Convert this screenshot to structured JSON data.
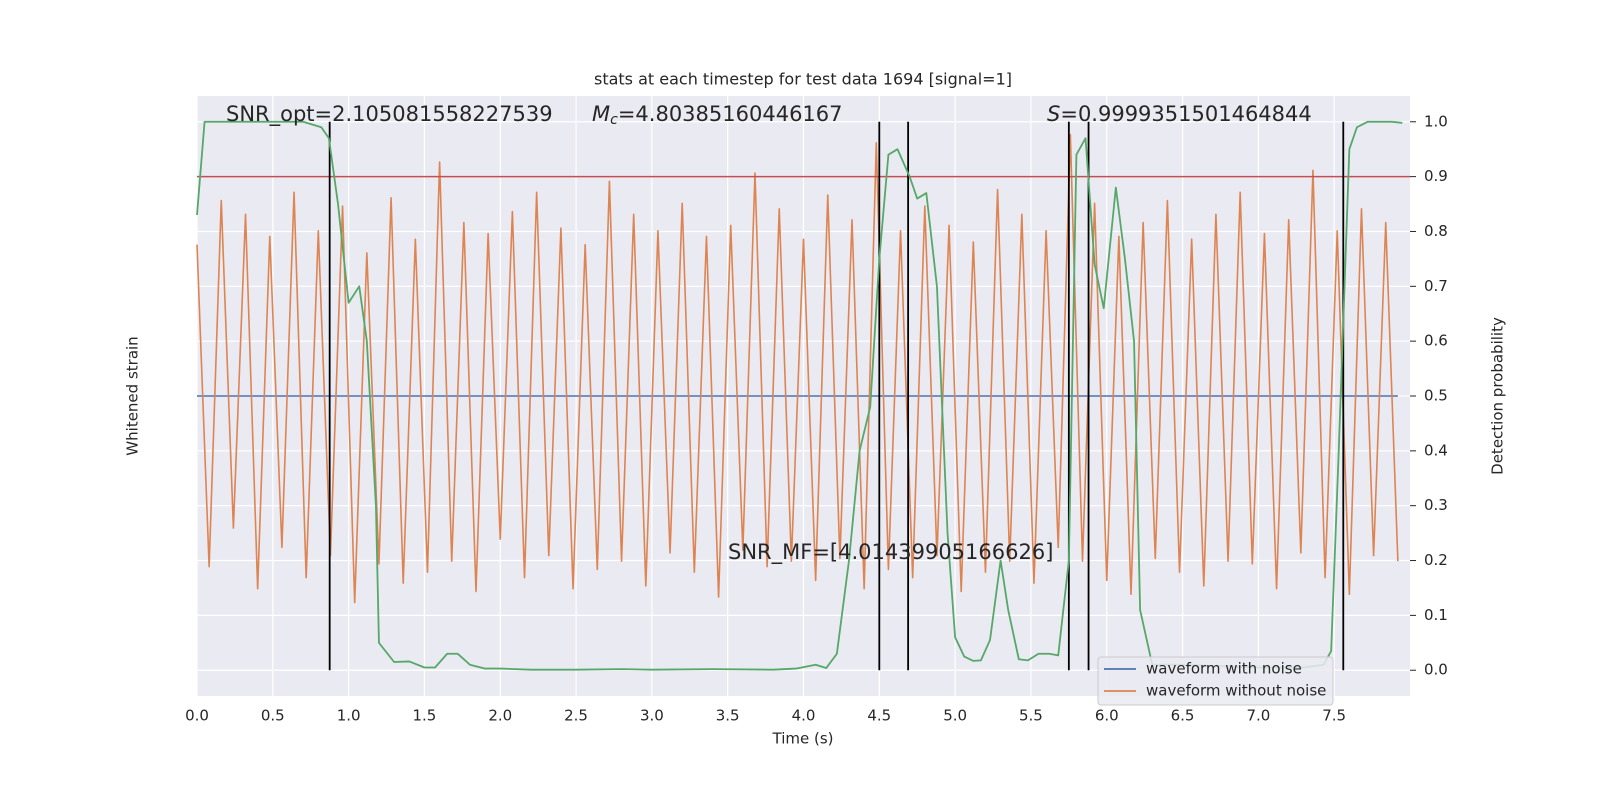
{
  "chart_data": {
    "type": "line",
    "title": "stats at each timestep for test data 1694 [signal=1]",
    "xlabel": "Time (s)",
    "ylabel": "Whitened strain",
    "y2label": "Detection probability",
    "annotations": {
      "snr_opt": "SNR_opt=2.105081558227539",
      "mc_symbol": "M",
      "mc_subscript": "c",
      "mc_value": "=4.80385160446167",
      "s_symbol": "S",
      "s_value": "=0.9999351501464844",
      "snr_mf": "SNR_MF=[4.01439905166626]"
    },
    "xlim": [
      0,
      8.0
    ],
    "xticks": [
      {
        "value": 0,
        "label": "0.0"
      },
      0.5,
      {
        "value": 1,
        "label": "1.0"
      },
      1.5,
      {
        "value": 2,
        "label": "2.0"
      },
      2.5,
      {
        "value": 3,
        "label": "3.0"
      },
      3.5,
      {
        "value": 4,
        "label": "4.0"
      },
      4.5,
      {
        "value": 5,
        "label": "5.0"
      },
      5.5,
      {
        "value": 6,
        "label": "6.0"
      },
      6.5,
      {
        "value": 7,
        "label": "7.0"
      },
      7.5
    ],
    "ylim": [
      -1.09,
      1.09
    ],
    "y2lim": [
      -0.047,
      1.047
    ],
    "y2ticks": [
      {
        "value": 0,
        "label": "0.0"
      },
      0.1,
      0.2,
      0.3,
      0.4,
      0.5,
      0.6,
      0.7,
      0.8,
      0.9,
      {
        "value": 1,
        "label": "1.0"
      }
    ],
    "grid": true,
    "legend": "lower right",
    "series": [
      {
        "name": "waveform with noise",
        "color": "#4c72b0",
        "x": [
          0,
          7.92
        ],
        "values": [
          0,
          0
        ]
      },
      {
        "name": "waveform without noise",
        "color": "#dd8452",
        "x": [
          0,
          0.08,
          0.16,
          0.24,
          0.32,
          0.4,
          0.48,
          0.56,
          0.64,
          0.72,
          0.8,
          0.88,
          0.96,
          1.04,
          1.12,
          1.2,
          1.28,
          1.36,
          1.44,
          1.52,
          1.6,
          1.68,
          1.76,
          1.84,
          1.92,
          2,
          2.08,
          2.16,
          2.24,
          2.32,
          2.4,
          2.48,
          2.56,
          2.64,
          2.72,
          2.8,
          2.88,
          2.96,
          3.04,
          3.12,
          3.2,
          3.28,
          3.36,
          3.44,
          3.52,
          3.6,
          3.68,
          3.76,
          3.84,
          3.92,
          4,
          4.08,
          4.16,
          4.24,
          4.32,
          4.4,
          4.48,
          4.56,
          4.64,
          4.72,
          4.8,
          4.88,
          4.96,
          5.04,
          5.12,
          5.2,
          5.28,
          5.36,
          5.44,
          5.52,
          5.6,
          5.68,
          5.76,
          5.84,
          5.92,
          6,
          6.08,
          6.16,
          6.24,
          6.32,
          6.4,
          6.48,
          6.56,
          6.64,
          6.72,
          6.8,
          6.88,
          6.96,
          7.04,
          7.12,
          7.2,
          7.28,
          7.36,
          7.44,
          7.52,
          7.6,
          7.68,
          7.76,
          7.84,
          7.92
        ],
        "values": [
          0.55,
          -0.62,
          0.71,
          -0.48,
          0.66,
          -0.7,
          0.58,
          -0.55,
          0.74,
          -0.66,
          0.6,
          -0.58,
          0.69,
          -0.75,
          0.52,
          -0.61,
          0.72,
          -0.68,
          0.57,
          -0.64,
          0.85,
          -0.6,
          0.63,
          -0.71,
          0.59,
          -0.52,
          0.67,
          -0.66,
          0.74,
          -0.58,
          0.61,
          -0.7,
          0.55,
          -0.63,
          0.78,
          -0.6,
          0.66,
          -0.69,
          0.6,
          -0.57,
          0.7,
          -0.64,
          0.58,
          -0.73,
          0.62,
          -0.56,
          0.81,
          -0.62,
          0.68,
          -0.6,
          0.57,
          -0.67,
          0.73,
          -0.59,
          0.64,
          -0.7,
          0.92,
          -0.63,
          0.6,
          -0.66,
          0.69,
          -0.58,
          0.62,
          -0.71,
          0.56,
          -0.64,
          0.75,
          -0.6,
          0.66,
          -0.68,
          0.6,
          -0.55,
          0.95,
          -0.6,
          0.7,
          -0.67,
          0.58,
          -0.72,
          0.63,
          -0.59,
          0.71,
          -0.64,
          0.57,
          -0.69,
          0.66,
          -0.6,
          0.74,
          -0.61,
          0.59,
          -0.7,
          0.64,
          -0.57,
          0.82,
          -0.66,
          0.6,
          -0.72,
          0.68,
          -0.58,
          0.63,
          -0.6
        ]
      },
      {
        "name": "detection probability",
        "color": "#55a868",
        "axis": "y2",
        "x": [
          0,
          0.05,
          0.12,
          0.3,
          0.5,
          0.7,
          0.82,
          0.87,
          0.93,
          1.0,
          1.07,
          1.12,
          1.18,
          1.2,
          1.3,
          1.4,
          1.5,
          1.57,
          1.65,
          1.72,
          1.8,
          1.9,
          2.0,
          2.2,
          2.5,
          2.8,
          3.0,
          3.4,
          3.8,
          3.95,
          4.08,
          4.15,
          4.22,
          4.3,
          4.37,
          4.44,
          4.5,
          4.56,
          4.62,
          4.7,
          4.75,
          4.81,
          4.88,
          4.95,
          5.0,
          5.06,
          5.12,
          5.17,
          5.23,
          5.3,
          5.35,
          5.42,
          5.48,
          5.55,
          5.62,
          5.68,
          5.75,
          5.8,
          5.86,
          5.92,
          5.98,
          6.06,
          6.12,
          6.18,
          6.22,
          6.3,
          6.5,
          7.0,
          7.3,
          7.43,
          7.48,
          7.53,
          7.6,
          7.65,
          7.72,
          7.8,
          7.88,
          7.95
        ],
        "values": [
          0.83,
          1.0,
          1.0,
          1.0,
          1.0,
          1.0,
          0.99,
          0.97,
          0.85,
          0.67,
          0.7,
          0.6,
          0.3,
          0.05,
          0.015,
          0.016,
          0.005,
          0.005,
          0.03,
          0.03,
          0.01,
          0.003,
          0.003,
          0.001,
          0.001,
          0.002,
          0.001,
          0.002,
          0.001,
          0.003,
          0.01,
          0.004,
          0.03,
          0.2,
          0.4,
          0.48,
          0.75,
          0.94,
          0.95,
          0.9,
          0.86,
          0.87,
          0.7,
          0.25,
          0.06,
          0.025,
          0.017,
          0.018,
          0.055,
          0.2,
          0.11,
          0.02,
          0.018,
          0.03,
          0.03,
          0.027,
          0.2,
          0.94,
          0.97,
          0.74,
          0.66,
          0.88,
          0.75,
          0.6,
          0.11,
          0.01,
          0.01,
          0.005,
          0.005,
          0.01,
          0.035,
          0.4,
          0.95,
          0.99,
          1.0,
          1.0,
          1.0,
          0.998
        ]
      }
    ],
    "threshold": 0.9,
    "threshold_color": "#c44e52",
    "vlines": [
      0.875,
      4.5,
      4.69,
      5.75,
      5.88,
      7.56
    ],
    "vline_color": "#000000"
  }
}
